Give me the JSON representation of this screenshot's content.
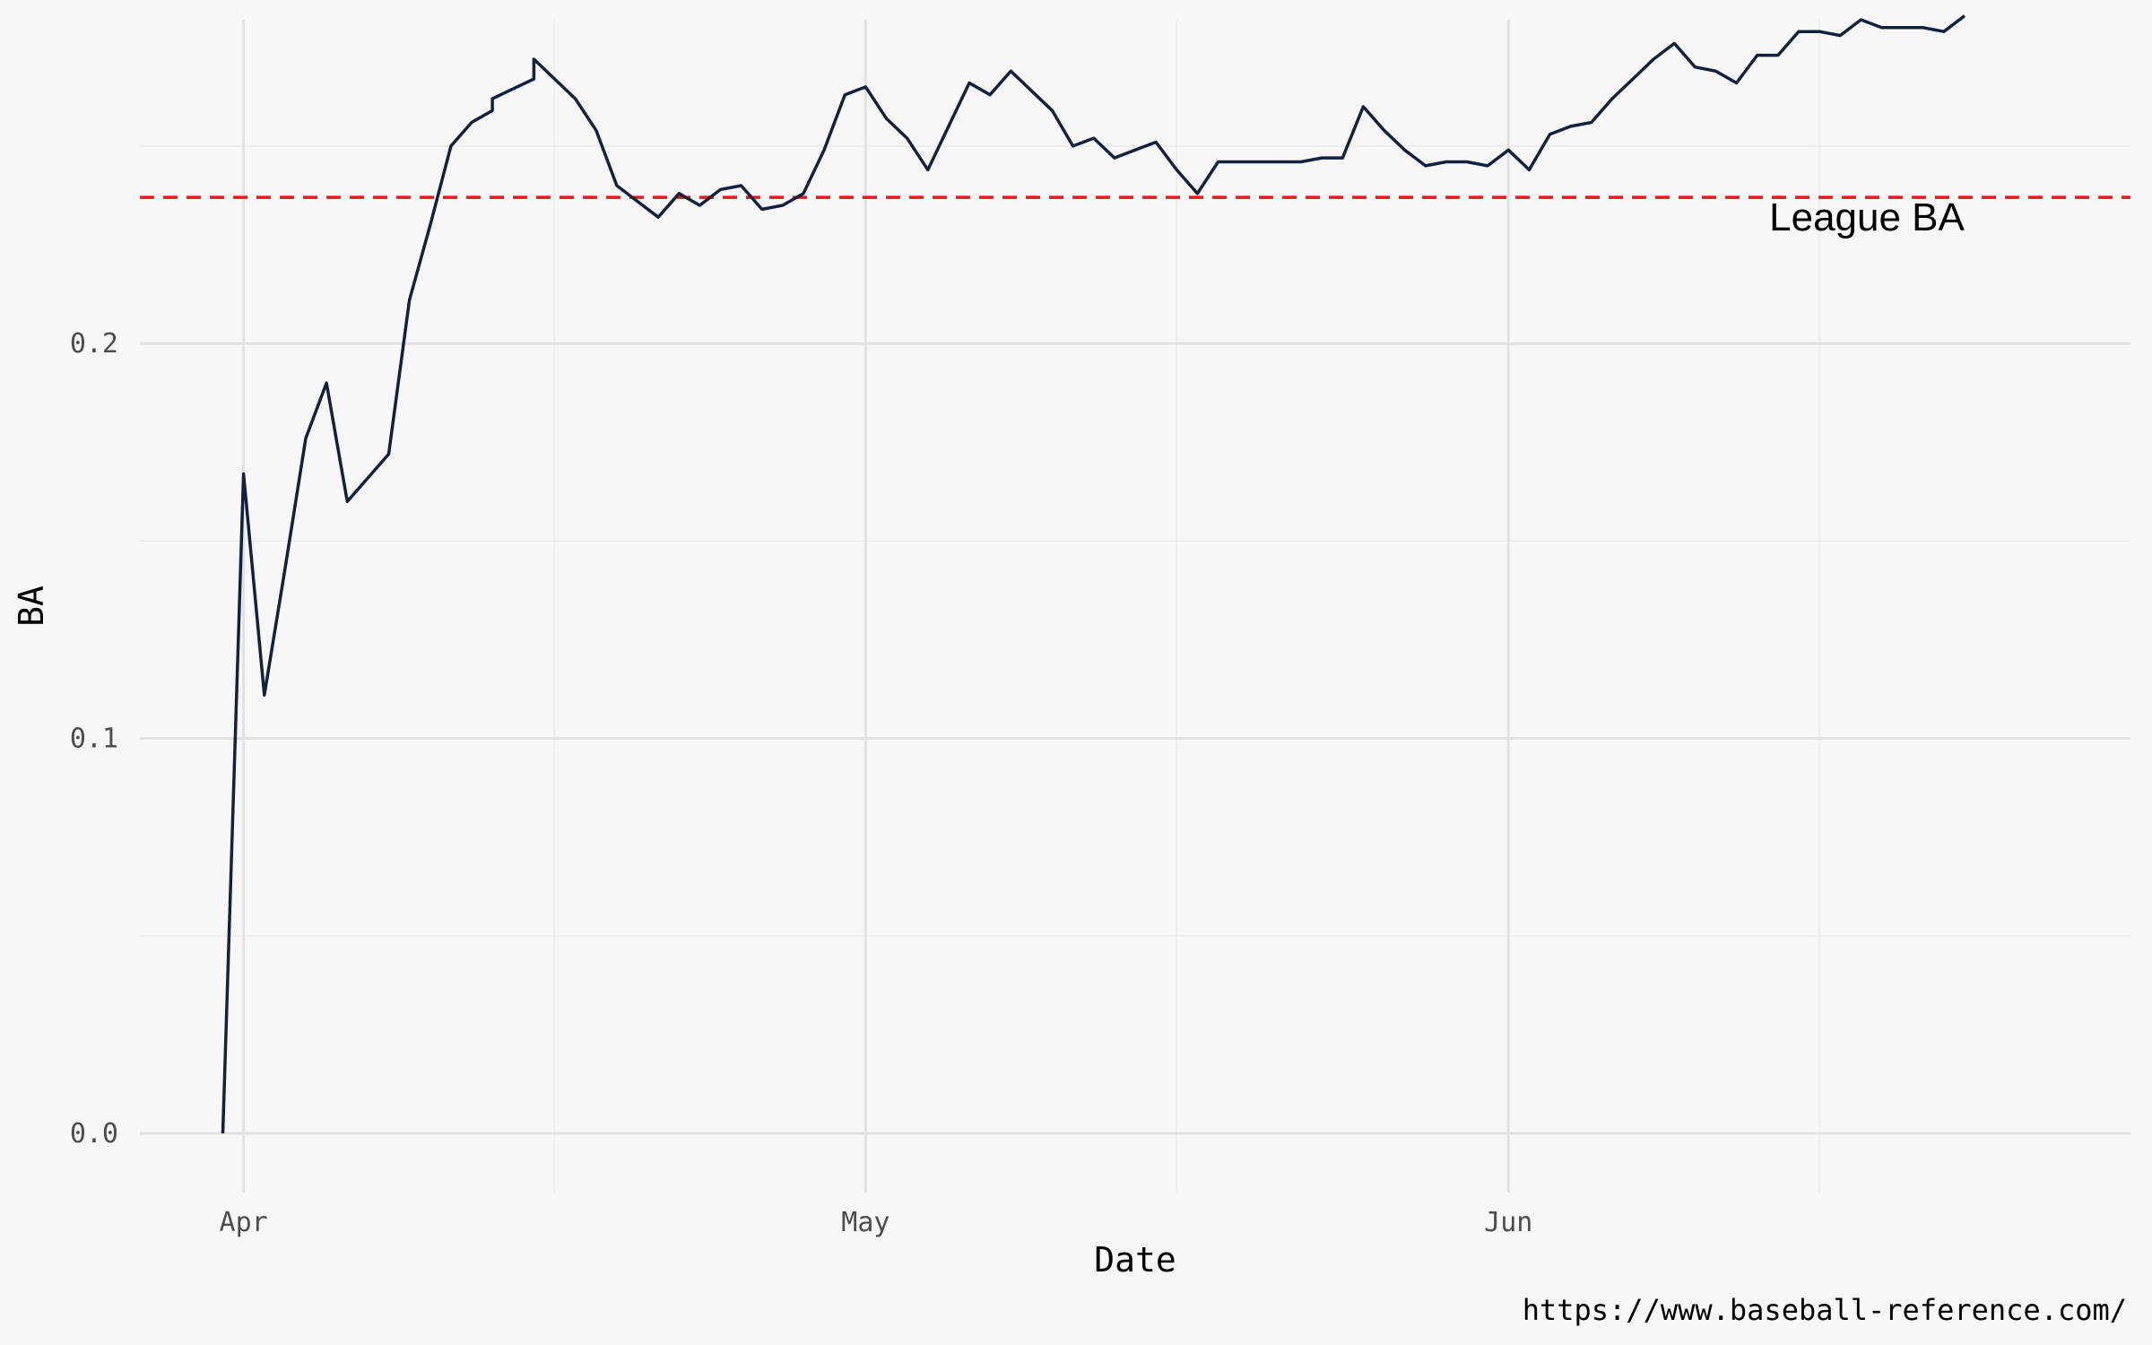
{
  "chart_data": {
    "type": "line",
    "title": "",
    "xlabel": "Date",
    "ylabel": "BA",
    "x_ticks": [
      "Apr",
      "May",
      "Jun"
    ],
    "y_ticks": [
      "0.0",
      "0.1",
      "0.2"
    ],
    "ylim": [
      -0.015,
      0.282
    ],
    "xlim": [
      "2023-03-27",
      "2023-07-01"
    ],
    "grid": true,
    "reference_line": {
      "label": "League BA",
      "value": 0.237,
      "color": "#e41a1c",
      "style": "dashed"
    },
    "line_color": "#14213d",
    "series": [
      {
        "x": [
          "2023-03-31",
          "2023-04-01",
          "2023-04-02",
          "2023-04-03",
          "2023-04-04",
          "2023-04-05",
          "2023-04-06",
          "2023-04-07",
          "2023-04-08",
          "2023-04-09",
          "2023-04-10",
          "2023-04-11",
          "2023-04-12",
          "2023-04-13",
          "2023-04-13",
          "2023-04-15",
          "2023-04-15",
          "2023-04-17",
          "2023-04-18",
          "2023-04-19",
          "2023-04-20",
          "2023-04-21",
          "2023-04-22",
          "2023-04-23",
          "2023-04-24",
          "2023-04-25",
          "2023-04-26",
          "2023-04-27",
          "2023-04-28",
          "2023-04-29",
          "2023-04-30",
          "2023-05-01",
          "2023-05-02",
          "2023-05-03",
          "2023-05-04",
          "2023-05-05",
          "2023-05-06",
          "2023-05-07",
          "2023-05-08",
          "2023-05-09",
          "2023-05-10",
          "2023-05-11",
          "2023-05-12",
          "2023-05-13",
          "2023-05-14",
          "2023-05-15",
          "2023-05-16",
          "2023-05-17",
          "2023-05-18",
          "2023-05-19",
          "2023-05-20",
          "2023-05-21",
          "2023-05-22",
          "2023-05-23",
          "2023-05-24",
          "2023-05-25",
          "2023-05-26",
          "2023-05-27",
          "2023-05-28",
          "2023-05-29",
          "2023-05-30",
          "2023-05-31",
          "2023-06-01",
          "2023-06-02",
          "2023-06-03",
          "2023-06-04",
          "2023-06-05",
          "2023-06-06",
          "2023-06-07",
          "2023-06-08",
          "2023-06-09",
          "2023-06-10",
          "2023-06-11",
          "2023-06-12",
          "2023-06-13",
          "2023-06-14",
          "2023-06-15",
          "2023-06-16",
          "2023-06-17",
          "2023-06-18",
          "2023-06-19",
          "2023-06-20",
          "2023-06-21",
          "2023-06-22",
          "2023-06-23"
        ],
        "y": [
          0.0,
          0.167,
          0.111,
          0.143,
          0.176,
          0.19,
          0.16,
          0.166,
          0.172,
          0.211,
          0.23,
          0.25,
          0.256,
          0.259,
          0.262,
          0.267,
          0.272,
          0.262,
          0.254,
          0.24,
          0.236,
          0.232,
          0.238,
          0.235,
          0.239,
          0.24,
          0.234,
          0.235,
          0.238,
          0.249,
          0.263,
          0.265,
          0.257,
          0.252,
          0.244,
          0.255,
          0.266,
          0.263,
          0.269,
          0.264,
          0.259,
          0.25,
          0.252,
          0.247,
          0.249,
          0.251,
          0.244,
          0.238,
          0.246,
          0.246,
          0.246,
          0.246,
          0.246,
          0.247,
          0.247,
          0.26,
          0.254,
          0.249,
          0.245,
          0.246,
          0.246,
          0.245,
          0.249,
          0.244,
          0.253,
          0.255,
          0.256,
          0.262,
          0.267,
          0.272,
          0.276,
          0.27,
          0.269,
          0.266,
          0.273,
          0.273,
          0.279,
          0.279,
          0.278,
          0.282,
          0.28,
          0.28,
          0.28,
          0.279,
          0.283
        ]
      }
    ]
  },
  "caption": "https://www.baseball-reference.com/"
}
